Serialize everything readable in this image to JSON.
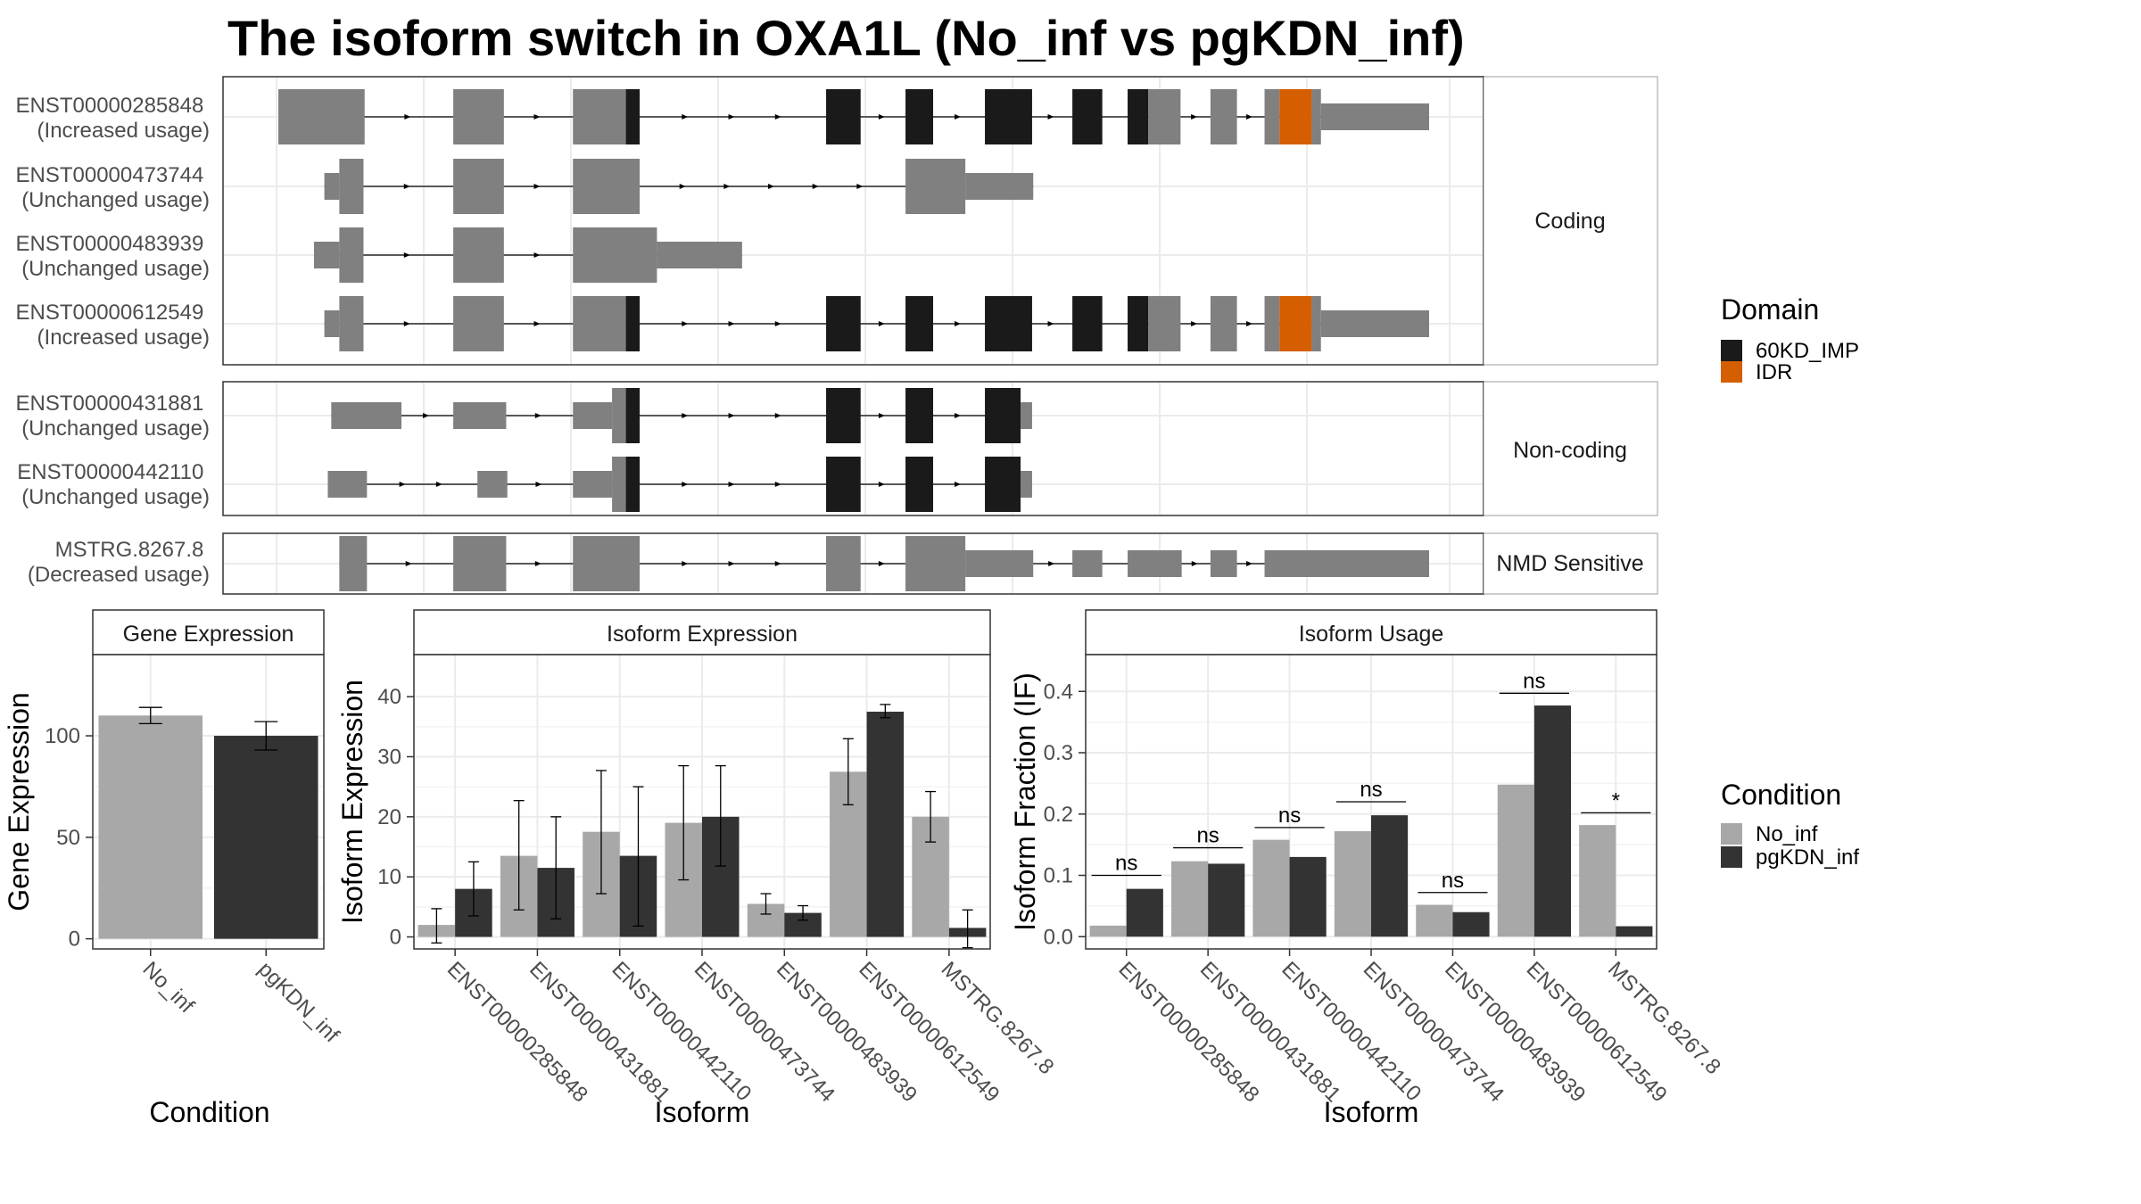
{
  "title": "The isoform switch in OXA1L (No_inf vs pgKDN_inf)",
  "colors": {
    "exon": "#808080",
    "domain_60KD_IMP": "#1a1a1a",
    "domain_IDR": "#d55e00",
    "cond_No_inf": "#a8a8a8",
    "cond_pgKDN_inf": "#333333",
    "panel_border": "#333333",
    "grid": "#ebebeb",
    "strip_fill": "#ffffff"
  },
  "structure": {
    "genome_range": [
      0,
      1000
    ],
    "groups": [
      {
        "label": "Coding",
        "isoforms": [
          {
            "id": "ENST00000285848",
            "usage": "(Increased usage)",
            "exons": [
              {
                "start": 0,
                "end": 75,
                "h": "thick",
                "part": "exon"
              },
              {
                "start": 152,
                "end": 196,
                "h": "thick",
                "part": "exon"
              },
              {
                "start": 256,
                "end": 302,
                "h": "thick",
                "part": "exon"
              },
              {
                "start": 302,
                "end": 314,
                "h": "thick",
                "part": "60KD_IMP"
              },
              {
                "start": 476,
                "end": 506,
                "h": "thick",
                "part": "60KD_IMP"
              },
              {
                "start": 545,
                "end": 569,
                "h": "thick",
                "part": "60KD_IMP"
              },
              {
                "start": 614,
                "end": 655,
                "h": "thick",
                "part": "60KD_IMP"
              },
              {
                "start": 690,
                "end": 716,
                "h": "thick",
                "part": "60KD_IMP"
              },
              {
                "start": 738,
                "end": 756,
                "h": "thick",
                "part": "60KD_IMP"
              },
              {
                "start": 756,
                "end": 784,
                "h": "thick",
                "part": "exon"
              },
              {
                "start": 810,
                "end": 833,
                "h": "thick",
                "part": "exon"
              },
              {
                "start": 857,
                "end": 870,
                "h": "thick",
                "part": "exon"
              },
              {
                "start": 870,
                "end": 898,
                "h": "thick",
                "part": "IDR"
              },
              {
                "start": 898,
                "end": 906,
                "h": "thick",
                "part": "exon"
              },
              {
                "start": 906,
                "end": 1000,
                "h": "thin",
                "part": "exon"
              }
            ]
          },
          {
            "id": "ENST00000473744",
            "usage": "(Unchanged usage)",
            "exons": [
              {
                "start": 40,
                "end": 53,
                "h": "thin",
                "part": "exon"
              },
              {
                "start": 53,
                "end": 74,
                "h": "thick",
                "part": "exon"
              },
              {
                "start": 152,
                "end": 196,
                "h": "thick",
                "part": "exon"
              },
              {
                "start": 256,
                "end": 314,
                "h": "thick",
                "part": "exon"
              },
              {
                "start": 545,
                "end": 597,
                "h": "thick",
                "part": "exon"
              },
              {
                "start": 597,
                "end": 656,
                "h": "thin",
                "part": "exon"
              }
            ]
          },
          {
            "id": "ENST00000483939",
            "usage": "(Unchanged usage)",
            "exons": [
              {
                "start": 31,
                "end": 53,
                "h": "thin",
                "part": "exon"
              },
              {
                "start": 53,
                "end": 74,
                "h": "thick",
                "part": "exon"
              },
              {
                "start": 152,
                "end": 196,
                "h": "thick",
                "part": "exon"
              },
              {
                "start": 256,
                "end": 329,
                "h": "thick",
                "part": "exon"
              },
              {
                "start": 329,
                "end": 403,
                "h": "thin",
                "part": "exon"
              }
            ]
          },
          {
            "id": "ENST00000612549",
            "usage": "(Increased usage)",
            "exons": [
              {
                "start": 40,
                "end": 53,
                "h": "thin",
                "part": "exon"
              },
              {
                "start": 53,
                "end": 74,
                "h": "thick",
                "part": "exon"
              },
              {
                "start": 152,
                "end": 196,
                "h": "thick",
                "part": "exon"
              },
              {
                "start": 256,
                "end": 302,
                "h": "thick",
                "part": "exon"
              },
              {
                "start": 302,
                "end": 314,
                "h": "thick",
                "part": "60KD_IMP"
              },
              {
                "start": 476,
                "end": 506,
                "h": "thick",
                "part": "60KD_IMP"
              },
              {
                "start": 545,
                "end": 569,
                "h": "thick",
                "part": "60KD_IMP"
              },
              {
                "start": 614,
                "end": 655,
                "h": "thick",
                "part": "60KD_IMP"
              },
              {
                "start": 690,
                "end": 716,
                "h": "thick",
                "part": "60KD_IMP"
              },
              {
                "start": 738,
                "end": 756,
                "h": "thick",
                "part": "60KD_IMP"
              },
              {
                "start": 756,
                "end": 784,
                "h": "thick",
                "part": "exon"
              },
              {
                "start": 810,
                "end": 833,
                "h": "thick",
                "part": "exon"
              },
              {
                "start": 857,
                "end": 870,
                "h": "thick",
                "part": "exon"
              },
              {
                "start": 870,
                "end": 898,
                "h": "thick",
                "part": "IDR"
              },
              {
                "start": 898,
                "end": 906,
                "h": "thick",
                "part": "exon"
              },
              {
                "start": 906,
                "end": 1000,
                "h": "thin",
                "part": "exon"
              }
            ]
          }
        ]
      },
      {
        "label": "Non-coding",
        "isoforms": [
          {
            "id": "ENST00000431881",
            "usage": "(Unchanged usage)",
            "exons": [
              {
                "start": 46,
                "end": 107,
                "h": "thin",
                "part": "exon"
              },
              {
                "start": 152,
                "end": 198,
                "h": "thin",
                "part": "exon"
              },
              {
                "start": 256,
                "end": 290,
                "h": "thin",
                "part": "exon"
              },
              {
                "start": 290,
                "end": 302,
                "h": "thick",
                "part": "exon"
              },
              {
                "start": 302,
                "end": 314,
                "h": "thick",
                "part": "60KD_IMP"
              },
              {
                "start": 476,
                "end": 506,
                "h": "thick",
                "part": "60KD_IMP"
              },
              {
                "start": 545,
                "end": 569,
                "h": "thick",
                "part": "60KD_IMP"
              },
              {
                "start": 614,
                "end": 645,
                "h": "thick",
                "part": "60KD_IMP"
              },
              {
                "start": 645,
                "end": 655,
                "h": "thin",
                "part": "exon"
              }
            ]
          },
          {
            "id": "ENST00000442110",
            "usage": "(Unchanged usage)",
            "exons": [
              {
                "start": 43,
                "end": 77,
                "h": "thin",
                "part": "exon"
              },
              {
                "start": 173,
                "end": 199,
                "h": "thin",
                "part": "exon"
              },
              {
                "start": 256,
                "end": 290,
                "h": "thin",
                "part": "exon"
              },
              {
                "start": 290,
                "end": 302,
                "h": "thick",
                "part": "exon"
              },
              {
                "start": 302,
                "end": 314,
                "h": "thick",
                "part": "60KD_IMP"
              },
              {
                "start": 476,
                "end": 506,
                "h": "thick",
                "part": "60KD_IMP"
              },
              {
                "start": 545,
                "end": 569,
                "h": "thick",
                "part": "60KD_IMP"
              },
              {
                "start": 614,
                "end": 645,
                "h": "thick",
                "part": "60KD_IMP"
              },
              {
                "start": 645,
                "end": 655,
                "h": "thin",
                "part": "exon"
              }
            ]
          }
        ]
      },
      {
        "label": "NMD Sensitive",
        "isoforms": [
          {
            "id": "MSTRG.8267.8",
            "usage": "(Decreased usage)",
            "exons": [
              {
                "start": 53,
                "end": 77,
                "h": "thick",
                "part": "exon"
              },
              {
                "start": 152,
                "end": 198,
                "h": "thick",
                "part": "exon"
              },
              {
                "start": 256,
                "end": 314,
                "h": "thick",
                "part": "exon"
              },
              {
                "start": 476,
                "end": 506,
                "h": "thick",
                "part": "exon"
              },
              {
                "start": 545,
                "end": 597,
                "h": "thick",
                "part": "exon"
              },
              {
                "start": 597,
                "end": 656,
                "h": "thin",
                "part": "exon"
              },
              {
                "start": 690,
                "end": 716,
                "h": "thin",
                "part": "exon"
              },
              {
                "start": 738,
                "end": 785,
                "h": "thin",
                "part": "exon"
              },
              {
                "start": 810,
                "end": 833,
                "h": "thin",
                "part": "exon"
              },
              {
                "start": 857,
                "end": 1000,
                "h": "thin",
                "part": "exon"
              }
            ]
          }
        ]
      }
    ]
  },
  "domain_legend": {
    "title": "Domain",
    "items": [
      {
        "label": "60KD_IMP",
        "color": "#1a1a1a"
      },
      {
        "label": "IDR",
        "color": "#d55e00"
      }
    ]
  },
  "condition_legend": {
    "title": "Condition",
    "items": [
      {
        "label": "No_inf",
        "color": "#a8a8a8"
      },
      {
        "label": "pgKDN_inf",
        "color": "#333333"
      }
    ]
  },
  "chart_data": [
    {
      "type": "bar",
      "title": "Gene Expression",
      "xlabel": "Condition",
      "ylabel": "Gene Expression",
      "categories": [
        "No_inf",
        "pgKDN_inf"
      ],
      "values": [
        110,
        100
      ],
      "error_low": [
        106,
        93
      ],
      "error_high": [
        114,
        107
      ],
      "ylim": [
        -5,
        140
      ],
      "yticks": [
        0,
        50,
        100
      ]
    },
    {
      "type": "bar",
      "title": "Isoform Expression",
      "xlabel": "Isoform",
      "ylabel": "Isoform Expression",
      "categories": [
        "ENST00000285848",
        "ENST00000431881",
        "ENST00000442110",
        "ENST00000473744",
        "ENST00000483939",
        "ENST00000612549",
        "MSTRG.8267.8"
      ],
      "series": [
        {
          "name": "No_inf",
          "values": [
            2,
            13.5,
            17.5,
            19,
            5.5,
            27.5,
            20
          ],
          "error_low": [
            -1,
            4.5,
            7.2,
            9.5,
            3.8,
            22,
            15.8
          ],
          "error_high": [
            4.7,
            22.7,
            27.7,
            28.5,
            7.2,
            33,
            24.2
          ]
        },
        {
          "name": "pgKDN_inf",
          "values": [
            8,
            11.5,
            13.5,
            20,
            4,
            37.5,
            1.5
          ],
          "error_low": [
            3.5,
            3,
            1.8,
            11.8,
            2.8,
            36.5,
            -1.8
          ],
          "error_high": [
            12.5,
            20,
            25,
            28.5,
            5.2,
            38.7,
            4.5
          ]
        }
      ],
      "ylim": [
        -2,
        47
      ],
      "yticks": [
        0,
        10,
        20,
        30,
        40
      ]
    },
    {
      "type": "bar",
      "title": "Isoform Usage",
      "xlabel": "Isoform",
      "ylabel": "Isoform Fraction (IF)",
      "categories": [
        "ENST00000285848",
        "ENST00000431881",
        "ENST00000442110",
        "ENST00000473744",
        "ENST00000483939",
        "ENST00000612549",
        "MSTRG.8267.8"
      ],
      "series": [
        {
          "name": "No_inf",
          "values": [
            0.018,
            0.123,
            0.158,
            0.172,
            0.052,
            0.248,
            0.182
          ]
        },
        {
          "name": "pgKDN_inf",
          "values": [
            0.078,
            0.119,
            0.13,
            0.198,
            0.04,
            0.377,
            0.017
          ]
        }
      ],
      "significance": [
        "ns",
        "ns",
        "ns",
        "ns",
        "ns",
        "ns",
        "*"
      ],
      "sig_y": [
        0.1,
        0.145,
        0.178,
        0.22,
        0.072,
        0.397,
        0.202
      ],
      "ylim": [
        -0.02,
        0.46
      ],
      "yticks": [
        0.0,
        0.1,
        0.2,
        0.3,
        0.4
      ],
      "ytick_labels": [
        "0.0",
        "0.1",
        "0.2",
        "0.3",
        "0.4"
      ]
    }
  ]
}
